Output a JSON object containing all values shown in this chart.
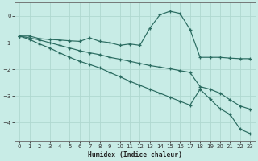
{
  "xlabel": "Humidex (Indice chaleur)",
  "bg_color": "#c8ece6",
  "line_color": "#2a6b60",
  "grid_color": "#b0d8d0",
  "xlim": [
    -0.5,
    23.5
  ],
  "ylim": [
    -4.7,
    0.5
  ],
  "yticks": [
    0,
    -1,
    -2,
    -3,
    -4
  ],
  "xticks": [
    0,
    1,
    2,
    3,
    4,
    5,
    6,
    7,
    8,
    9,
    10,
    11,
    12,
    13,
    14,
    15,
    16,
    17,
    18,
    19,
    20,
    21,
    22,
    23
  ],
  "line1_x": [
    0,
    1,
    2,
    3,
    4,
    5,
    6,
    7,
    8,
    9,
    10,
    11,
    12,
    13,
    14,
    15,
    16,
    17,
    18,
    19,
    20,
    21,
    22,
    23
  ],
  "line1_y": [
    -0.75,
    -0.75,
    -0.85,
    -0.88,
    -0.9,
    -0.93,
    -0.95,
    -0.82,
    -0.95,
    -1.0,
    -1.1,
    -1.05,
    -1.1,
    -0.45,
    0.05,
    0.18,
    0.1,
    -0.5,
    -1.55,
    -1.55,
    -1.55,
    -1.58,
    -1.6,
    -1.6
  ],
  "line2_x": [
    0,
    1,
    2,
    3,
    4,
    5,
    6,
    7,
    8,
    9,
    10,
    11,
    12,
    13,
    14,
    15,
    16,
    17,
    18,
    19,
    20,
    21,
    22,
    23
  ],
  "line2_y": [
    -0.75,
    -0.82,
    -0.9,
    -1.0,
    -1.1,
    -1.2,
    -1.3,
    -1.38,
    -1.45,
    -1.55,
    -1.62,
    -1.7,
    -1.78,
    -1.86,
    -1.92,
    -1.98,
    -2.05,
    -2.12,
    -2.65,
    -2.75,
    -2.9,
    -3.15,
    -3.38,
    -3.5
  ],
  "line3_x": [
    0,
    1,
    2,
    3,
    4,
    5,
    6,
    7,
    8,
    9,
    10,
    11,
    12,
    13,
    14,
    15,
    16,
    17,
    18,
    19,
    20,
    21,
    22,
    23
  ],
  "line3_y": [
    -0.75,
    -0.88,
    -1.05,
    -1.2,
    -1.38,
    -1.55,
    -1.7,
    -1.82,
    -1.95,
    -2.12,
    -2.28,
    -2.45,
    -2.6,
    -2.75,
    -2.9,
    -3.05,
    -3.2,
    -3.35,
    -2.75,
    -3.12,
    -3.48,
    -3.7,
    -4.25,
    -4.42
  ]
}
